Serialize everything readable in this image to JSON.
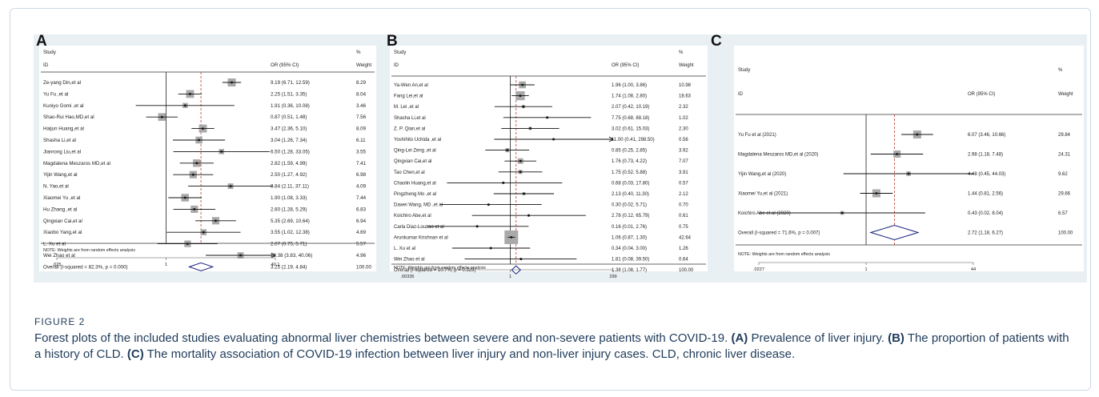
{
  "figure": {
    "label": "FIGURE 2",
    "caption": [
      {
        "t": "Forest plots of the included studies evaluating abnormal liver chemistries between severe and non-severe patients with COVID-19. ",
        "b": false
      },
      {
        "t": "(A)",
        "b": true
      },
      {
        "t": " Prevalence of liver injury. ",
        "b": false
      },
      {
        "t": "(B)",
        "b": true
      },
      {
        "t": " The proportion of patients with a history of CLD. ",
        "b": false
      },
      {
        "t": "(C)",
        "b": true
      },
      {
        "t": " The mortality association of COVID-19 infection between liver injury and non-liver injury cases. CLD, chronic liver disease.",
        "b": false
      }
    ]
  },
  "chart_data": [
    {
      "panel": "A",
      "type": "forest",
      "header": {
        "study": "Study",
        "id": "ID",
        "or": "OR (95% CI)",
        "pct": "%",
        "weight": "Weight"
      },
      "xscale": "log",
      "xticks": [
        {
          "v": 0.025,
          "label": ".025"
        },
        {
          "v": 1,
          "label": "1"
        },
        {
          "v": 40.1,
          "label": "40.1"
        }
      ],
      "xlim": [
        0.025,
        40.1
      ],
      "overall_line": 3.25,
      "studies": [
        {
          "name": "Ze-yang Din,et al",
          "or": 9.19,
          "lo": 6.71,
          "hi": 12.59,
          "ci_text": "9.19 (6.71, 12.59)",
          "weight": "8.29"
        },
        {
          "name": "Yu Fu ,et al",
          "or": 2.25,
          "lo": 1.51,
          "hi": 3.35,
          "ci_text": "2.25 (1.51, 3.35)",
          "weight": "8.04"
        },
        {
          "name": "Kuniyo Gomi ,et al",
          "or": 1.91,
          "lo": 0.36,
          "hi": 10.08,
          "ci_text": "1.91 (0.36, 10.08)",
          "weight": "3.46"
        },
        {
          "name": "Shao-Rui Hao,MD,et al",
          "or": 0.87,
          "lo": 0.51,
          "hi": 1.48,
          "ci_text": "0.87 (0.51, 1.48)",
          "weight": "7.56"
        },
        {
          "name": "Haijun Huang,et al",
          "or": 3.47,
          "lo": 2.36,
          "hi": 5.1,
          "ci_text": "3.47 (2.36, 5.10)",
          "weight": "8.09"
        },
        {
          "name": "Shasha Li,et al",
          "or": 3.04,
          "lo": 1.26,
          "hi": 7.34,
          "ci_text": "3.04 (1.26, 7.34)",
          "weight": "6.11"
        },
        {
          "name": "Jianrong Liu,et al",
          "or": 6.5,
          "lo": 1.28,
          "hi": 33.05,
          "ci_text": "6.50 (1.28, 33.05)",
          "weight": "3.55"
        },
        {
          "name": "Magdalena Meszaros MD,et al",
          "or": 2.82,
          "lo": 1.59,
          "hi": 4.99,
          "ci_text": "2.82 (1.59, 4.99)",
          "weight": "7.41"
        },
        {
          "name": "Yijin Wang,et al",
          "or": 2.5,
          "lo": 1.27,
          "hi": 4.92,
          "ci_text": "2.50 (1.27, 4.92)",
          "weight": "6.98"
        },
        {
          "name": "N. Yao,et al",
          "or": 8.84,
          "lo": 2.11,
          "hi": 37.11,
          "ci_text": "8.84 (2.11, 37.11)",
          "weight": "4.09"
        },
        {
          "name": "Xiaomei Yu ,et al",
          "or": 1.9,
          "lo": 1.08,
          "hi": 3.33,
          "ci_text": "1.90 (1.08, 3.33)",
          "weight": "7.44"
        },
        {
          "name": "Hu Zhang ,et al",
          "or": 2.6,
          "lo": 1.28,
          "hi": 5.29,
          "ci_text": "2.60 (1.28, 5.29)",
          "weight": "6.83"
        },
        {
          "name": "Qingxian Cai,et al",
          "or": 5.35,
          "lo": 2.69,
          "hi": 10.64,
          "ci_text": "5.35 (2.69, 10.64)",
          "weight": "6.94"
        },
        {
          "name": "Xiaobo Yang,et al",
          "or": 3.55,
          "lo": 1.02,
          "hi": 12.38,
          "ci_text": "3.55 (1.02, 12.38)",
          "weight": "4.69"
        },
        {
          "name": "L. Xu et al",
          "or": 2.07,
          "lo": 0.75,
          "hi": 5.71,
          "ci_text": "2.07 (0.75, 5.71)",
          "weight": "5.57"
        },
        {
          "name": "Wei Zhao et al",
          "or": 12.38,
          "lo": 3.83,
          "hi": 40.06,
          "ci_text": "12.38 (3.83, 40.06)",
          "weight": "4.96",
          "arrow": true
        }
      ],
      "overall": {
        "label": "Overall  (I-squared = 82.3%, p = 0.000)",
        "or": 3.25,
        "lo": 2.19,
        "hi": 4.84,
        "ci_text": "3.25 (2.19, 4.84)",
        "weight": "100.00"
      },
      "note": "NOTE: Weights are from random effects analysis"
    },
    {
      "panel": "B",
      "type": "forest",
      "header": {
        "study": "Study",
        "id": "ID",
        "or": "OR (95% CI)",
        "pct": "%",
        "weight": "Weight"
      },
      "xscale": "log",
      "xticks": [
        {
          "v": 0.00335,
          "label": ".00335"
        },
        {
          "v": 1,
          "label": "1"
        },
        {
          "v": 299,
          "label": "299"
        }
      ],
      "xlim": [
        0.00335,
        299
      ],
      "overall_line": 1.38,
      "studies": [
        {
          "name": "Ya-Wen An,et al",
          "or": 1.96,
          "lo": 1.0,
          "hi": 3.86,
          "ci_text": "1.96 (1.00, 3.86)",
          "weight": "10.98"
        },
        {
          "name": "Fang Lei,et al",
          "or": 1.74,
          "lo": 1.08,
          "hi": 2.8,
          "ci_text": "1.74 (1.08, 2.80)",
          "weight": "18.63"
        },
        {
          "name": "M. Lei ,et al",
          "or": 2.07,
          "lo": 0.42,
          "hi": 10.19,
          "ci_text": "2.07 (0.42, 10.19)",
          "weight": "2.32"
        },
        {
          "name": "Shasha Li,et al",
          "or": 7.75,
          "lo": 0.68,
          "hi": 88.18,
          "ci_text": "7.75 (0.68, 88.18)",
          "weight": "1.02"
        },
        {
          "name": "Z. P. Qian,et al",
          "or": 3.02,
          "lo": 0.61,
          "hi": 15.03,
          "ci_text": "3.02 (0.61, 15.03)",
          "weight": "2.30"
        },
        {
          "name": "Yoshihito Uchida ,et al",
          "or": 11.0,
          "lo": 0.41,
          "hi": 298.5,
          "ci_text": "11.00 (0.41, 298.50)",
          "weight": "0.56",
          "arrow": true
        },
        {
          "name": "Qing-Lei Zeng ,et al",
          "or": 0.85,
          "lo": 0.25,
          "hi": 2.85,
          "ci_text": "0.85 (0.25, 2.85)",
          "weight": "3.92"
        },
        {
          "name": "Qingxian Cai,et al",
          "or": 1.76,
          "lo": 0.73,
          "hi": 4.22,
          "ci_text": "1.76 (0.73, 4.22)",
          "weight": "7.07"
        },
        {
          "name": "Tao Chen,et al",
          "or": 1.75,
          "lo": 0.52,
          "hi": 5.88,
          "ci_text": "1.75 (0.52, 5.88)",
          "weight": "3.91"
        },
        {
          "name": "Chaolin Huang,et al",
          "or": 0.68,
          "lo": 0.03,
          "hi": 17.8,
          "ci_text": "0.68 (0.03, 17.80)",
          "weight": "0.57"
        },
        {
          "name": "Pingzheng Mo ,et al",
          "or": 2.13,
          "lo": 0.4,
          "hi": 11.3,
          "ci_text": "2.13 (0.40, 11.30)",
          "weight": "2.12"
        },
        {
          "name": "Dawei Wang, MD ,et al",
          "or": 0.3,
          "lo": 0.02,
          "hi": 5.71,
          "ci_text": "0.30 (0.02, 5.71)",
          "weight": "0.70"
        },
        {
          "name": "Koichiro Abe,et al",
          "or": 2.78,
          "lo": 0.12,
          "hi": 65.79,
          "ci_text": "2.78 (0.12, 65.79)",
          "weight": "0.61"
        },
        {
          "name": "Carla Diaz-Louzao et al",
          "or": 0.16,
          "lo": 0.01,
          "hi": 2.76,
          "ci_text": "0.16 (0.01, 2.76)",
          "weight": "0.75"
        },
        {
          "name": "Arunkumar Krishnan  et al",
          "or": 1.06,
          "lo": 0.87,
          "hi": 1.3,
          "ci_text": "1.06 (0.87, 1.30)",
          "weight": "42.64"
        },
        {
          "name": "L. Xu et al",
          "or": 0.34,
          "lo": 0.04,
          "hi": 3.0,
          "ci_text": "0.34 (0.04, 3.00)",
          "weight": "1.26"
        },
        {
          "name": "Wei Zhao et al",
          "or": 1.81,
          "lo": 0.08,
          "hi": 39.5,
          "ci_text": "1.81 (0.08, 39.50)",
          "weight": "0.64"
        }
      ],
      "overall": {
        "label": "Overall  (I-squared = 10.7%, p = 0.329)",
        "or": 1.38,
        "lo": 1.08,
        "hi": 1.77,
        "ci_text": "1.38 (1.08, 1.77)",
        "weight": "100.00"
      },
      "note": "NOTE: Weights are from random effects analysis"
    },
    {
      "panel": "C",
      "type": "forest",
      "header": {
        "study": "Study",
        "id": "ID",
        "or": "OR (95% CI)",
        "pct": "%",
        "weight": "Weight"
      },
      "xscale": "log",
      "xticks": [
        {
          "v": 0.0227,
          "label": ".0227"
        },
        {
          "v": 1,
          "label": "1"
        },
        {
          "v": 44,
          "label": "44"
        }
      ],
      "xlim": [
        0.0227,
        44
      ],
      "overall_line": 2.72,
      "studies": [
        {
          "name": "Yu Fu et al  (2021)",
          "or": 6.07,
          "lo": 3.46,
          "hi": 10.66,
          "ci_text": "6.07 (3.46, 10.66)",
          "weight": "29.84"
        },
        {
          "name": "Magdalena Meszaros MD,et al (2020)",
          "or": 2.98,
          "lo": 1.18,
          "hi": 7.48,
          "ci_text": "2.98 (1.18, 7.48)",
          "weight": "24.31"
        },
        {
          "name": "Yijin Wang,et al (2020)",
          "or": 4.48,
          "lo": 0.45,
          "hi": 44.03,
          "ci_text": "4.48 (0.45, 44.03)",
          "weight": "9.62"
        },
        {
          "name": "Xiaomei Yu,et al (2021)",
          "or": 1.44,
          "lo": 0.81,
          "hi": 2.56,
          "ci_text": "1.44 (0.81, 2.56)",
          "weight": "29.66"
        },
        {
          "name": "Koichiro Abe et al (2020)",
          "or": 0.43,
          "lo": 0.02,
          "hi": 8.04,
          "ci_text": "0.43 (0.02, 8.04)",
          "weight": "6.57"
        }
      ],
      "overall": {
        "label": "Overall  (I-squared = 71.6%, p = 0.007)",
        "or": 2.72,
        "lo": 1.18,
        "hi": 6.27,
        "ci_text": "2.72 (1.18, 6.27)",
        "weight": "100.00"
      },
      "note": "NOTE: Weights are from random effects analysis"
    }
  ]
}
